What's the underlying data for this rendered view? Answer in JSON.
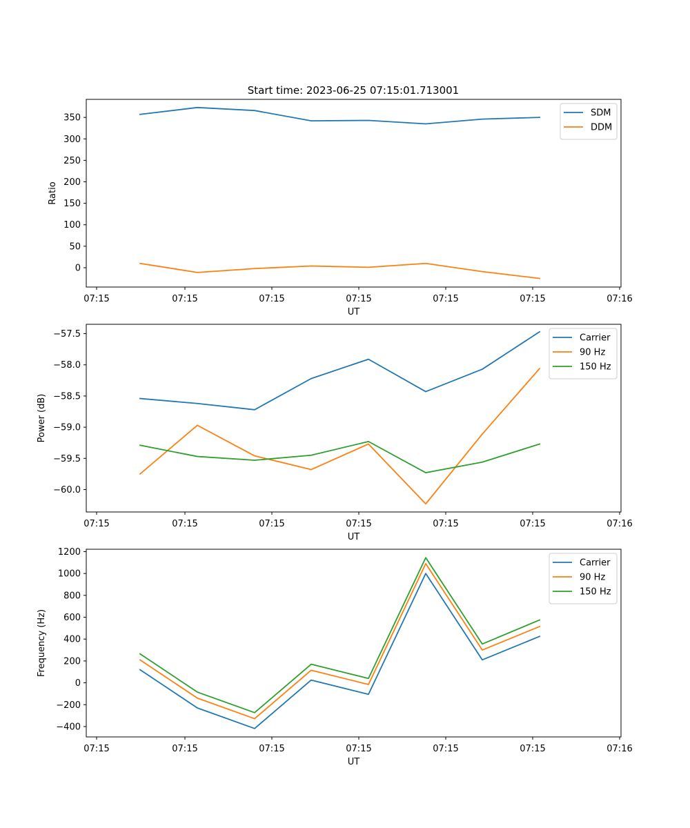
{
  "figure_title": "Start time: 2023-06-25 07:15:01.713001",
  "chart_data": [
    {
      "type": "line",
      "xlabel": "UT",
      "ylabel": "Ratio",
      "x_tick_labels": [
        "07:15",
        "07:15",
        "07:15",
        "07:15",
        "07:15",
        "07:15",
        "07:16"
      ],
      "y_ticks": [
        0,
        50,
        100,
        150,
        200,
        250,
        300,
        350
      ],
      "y_tick_labels": [
        "0",
        "50",
        "100",
        "150",
        "200",
        "250",
        "300",
        "350"
      ],
      "ylim": [
        -45,
        392
      ],
      "legend_position": "top-right",
      "grid": false,
      "series": [
        {
          "name": "SDM",
          "color": "#1f77b4",
          "values": [
            357,
            373,
            366,
            342,
            343,
            335,
            346,
            350
          ]
        },
        {
          "name": "DDM",
          "color": "#ff7f0e",
          "values": [
            10,
            -11,
            -2,
            4,
            1,
            10,
            -9,
            -25
          ]
        }
      ]
    },
    {
      "type": "line",
      "xlabel": "UT",
      "ylabel": "Power (dB)",
      "x_tick_labels": [
        "07:15",
        "07:15",
        "07:15",
        "07:15",
        "07:15",
        "07:15",
        "07:16"
      ],
      "y_ticks": [
        -60.0,
        -59.5,
        -59.0,
        -58.5,
        -58.0,
        -57.5
      ],
      "y_tick_labels": [
        "−60.0",
        "−59.5",
        "−59.0",
        "−58.5",
        "−58.0",
        "−57.5"
      ],
      "ylim": [
        -60.36,
        -57.35
      ],
      "legend_position": "top-right",
      "grid": false,
      "series": [
        {
          "name": "Carrier",
          "color": "#1f77b4",
          "values": [
            -58.54,
            -58.62,
            -58.72,
            -58.22,
            -57.91,
            -58.43,
            -58.07,
            -57.47
          ]
        },
        {
          "name": "90 Hz",
          "color": "#ff7f0e",
          "values": [
            -59.75,
            -58.97,
            -59.46,
            -59.68,
            -59.27,
            -60.23,
            -59.11,
            -58.06
          ]
        },
        {
          "name": "150 Hz",
          "color": "#2ca02c",
          "values": [
            -59.29,
            -59.47,
            -59.53,
            -59.45,
            -59.23,
            -59.73,
            -59.56,
            -59.27
          ]
        }
      ]
    },
    {
      "type": "line",
      "xlabel": "UT",
      "ylabel": "Frequency (Hz)",
      "x_tick_labels": [
        "07:15",
        "07:15",
        "07:15",
        "07:15",
        "07:15",
        "07:15",
        "07:16"
      ],
      "y_ticks": [
        -400,
        -200,
        0,
        200,
        400,
        600,
        800,
        1000,
        1200
      ],
      "y_tick_labels": [
        "−400",
        "−200",
        "0",
        "200",
        "400",
        "600",
        "800",
        "1000",
        "1200"
      ],
      "ylim": [
        -495,
        1222
      ],
      "legend_position": "top-right",
      "grid": false,
      "series": [
        {
          "name": "Carrier",
          "color": "#1f77b4",
          "values": [
            120,
            -230,
            -418,
            25,
            -105,
            1000,
            210,
            425
          ]
        },
        {
          "name": "90 Hz",
          "color": "#ff7f0e",
          "values": [
            210,
            -140,
            -328,
            115,
            -15,
            1090,
            300,
            515
          ]
        },
        {
          "name": "150 Hz",
          "color": "#2ca02c",
          "values": [
            265,
            -85,
            -273,
            170,
            40,
            1145,
            355,
            575
          ]
        }
      ]
    }
  ]
}
